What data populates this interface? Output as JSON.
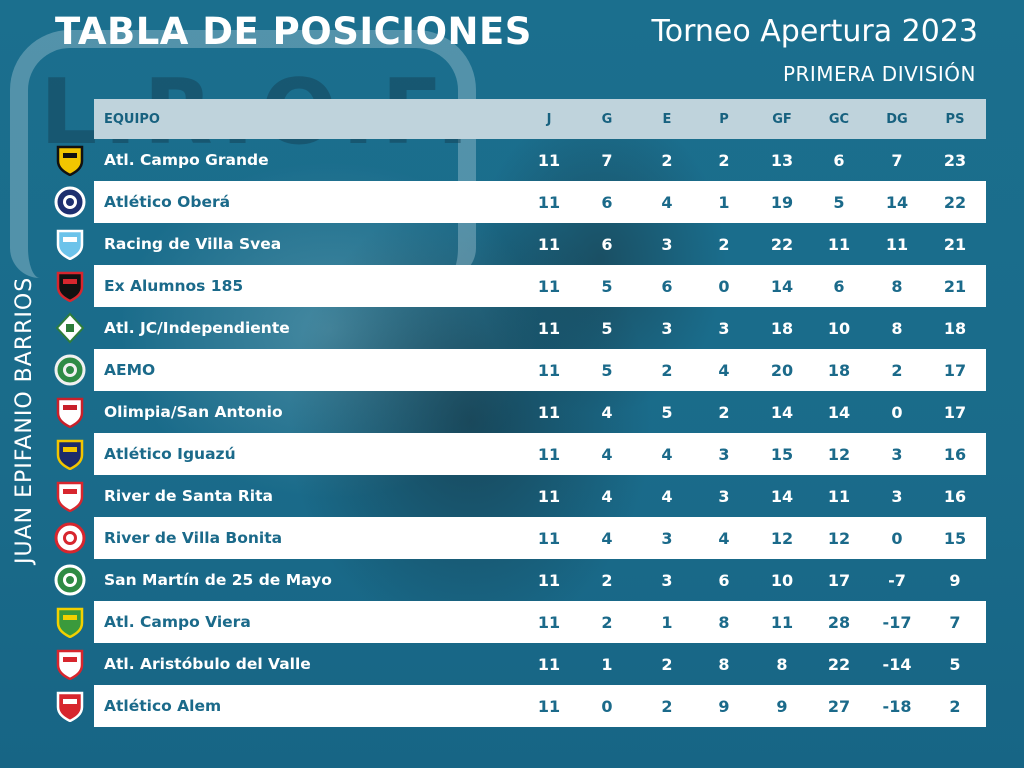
{
  "header": {
    "title": "TABLA DE POSICIONES",
    "tournament": "Torneo Apertura 2023",
    "division": "PRIMERA DIVISIÓN",
    "author": "JUAN EPIFANIO BARRIOS"
  },
  "background": {
    "logo_text": "L.R.O.F."
  },
  "columns": {
    "team": "EQUIPO",
    "j": "J",
    "g": "G",
    "e": "E",
    "p": "P",
    "gf": "GF",
    "gc": "GC",
    "dg": "DG",
    "ps": "PS"
  },
  "rows": [
    {
      "team": "Atl. Campo Grande",
      "j": "11",
      "g": "7",
      "e": "2",
      "p": "2",
      "gf": "13",
      "gc": "6",
      "dg": "7",
      "ps": "23",
      "crest": {
        "icon": "crest-shield-icon",
        "c1": "#f2c500",
        "c2": "#111111"
      }
    },
    {
      "team": "Atlético Oberá",
      "j": "11",
      "g": "6",
      "e": "4",
      "p": "1",
      "gf": "19",
      "gc": "5",
      "dg": "14",
      "ps": "22",
      "crest": {
        "icon": "crest-round-icon",
        "c1": "#1d2f6f",
        "c2": "#ffffff"
      }
    },
    {
      "team": "Racing de Villa Svea",
      "j": "11",
      "g": "6",
      "e": "3",
      "p": "2",
      "gf": "22",
      "gc": "11",
      "dg": "11",
      "ps": "21",
      "crest": {
        "icon": "crest-shield-icon",
        "c1": "#6cc3ea",
        "c2": "#ffffff"
      }
    },
    {
      "team": "Ex Alumnos 185",
      "j": "11",
      "g": "5",
      "e": "6",
      "p": "0",
      "gf": "14",
      "gc": "6",
      "dg": "8",
      "ps": "21",
      "crest": {
        "icon": "crest-shield-icon",
        "c1": "#111111",
        "c2": "#d7262e"
      }
    },
    {
      "team": "Atl. JC/Independiente",
      "j": "11",
      "g": "5",
      "e": "3",
      "p": "3",
      "gf": "18",
      "gc": "10",
      "dg": "8",
      "ps": "18",
      "crest": {
        "icon": "crest-diamond-icon",
        "c1": "#ffffff",
        "c2": "#2d7d3a"
      }
    },
    {
      "team": "AEMO",
      "j": "11",
      "g": "5",
      "e": "2",
      "p": "4",
      "gf": "20",
      "gc": "18",
      "dg": "2",
      "ps": "17",
      "crest": {
        "icon": "crest-round-icon",
        "c1": "#2e8b45",
        "c2": "#f0f0f0"
      }
    },
    {
      "team": "Olimpia/San Antonio",
      "j": "11",
      "g": "4",
      "e": "5",
      "p": "2",
      "gf": "14",
      "gc": "14",
      "dg": "0",
      "ps": "17",
      "crest": {
        "icon": "crest-shield-icon",
        "c1": "#ffffff",
        "c2": "#c8202a"
      }
    },
    {
      "team": "Atlético Iguazú",
      "j": "11",
      "g": "4",
      "e": "4",
      "p": "3",
      "gf": "15",
      "gc": "12",
      "dg": "3",
      "ps": "16",
      "crest": {
        "icon": "crest-shield-icon",
        "c1": "#1c2a6b",
        "c2": "#f2c500"
      }
    },
    {
      "team": "River de Santa Rita",
      "j": "11",
      "g": "4",
      "e": "4",
      "p": "3",
      "gf": "14",
      "gc": "11",
      "dg": "3",
      "ps": "16",
      "crest": {
        "icon": "crest-shield-icon",
        "c1": "#ffffff",
        "c2": "#d7262e"
      }
    },
    {
      "team": "River de Villa Bonita",
      "j": "11",
      "g": "4",
      "e": "3",
      "p": "4",
      "gf": "12",
      "gc": "12",
      "dg": "0",
      "ps": "15",
      "crest": {
        "icon": "crest-round-icon",
        "c1": "#ffffff",
        "c2": "#d7262e"
      }
    },
    {
      "team": "San Martín de 25 de Mayo",
      "j": "11",
      "g": "2",
      "e": "3",
      "p": "6",
      "gf": "10",
      "gc": "17",
      "dg": "-7",
      "ps": "9",
      "crest": {
        "icon": "crest-round-icon",
        "c1": "#2e8b45",
        "c2": "#ffffff"
      }
    },
    {
      "team": "Atl. Campo Viera",
      "j": "11",
      "g": "2",
      "e": "1",
      "p": "8",
      "gf": "11",
      "gc": "28",
      "dg": "-17",
      "ps": "7",
      "crest": {
        "icon": "crest-shield-icon",
        "c1": "#3a9a3c",
        "c2": "#f2d000"
      }
    },
    {
      "team": "Atl. Aristóbulo del Valle",
      "j": "11",
      "g": "1",
      "e": "2",
      "p": "8",
      "gf": "8",
      "gc": "22",
      "dg": "-14",
      "ps": "5",
      "crest": {
        "icon": "crest-shield-icon",
        "c1": "#ffffff",
        "c2": "#d7262e"
      }
    },
    {
      "team": "Atlético Alem",
      "j": "11",
      "g": "0",
      "e": "2",
      "p": "9",
      "gf": "9",
      "gc": "27",
      "dg": "-18",
      "ps": "2",
      "crest": {
        "icon": "crest-shield-icon",
        "c1": "#d7262e",
        "c2": "#ffffff"
      }
    }
  ]
}
